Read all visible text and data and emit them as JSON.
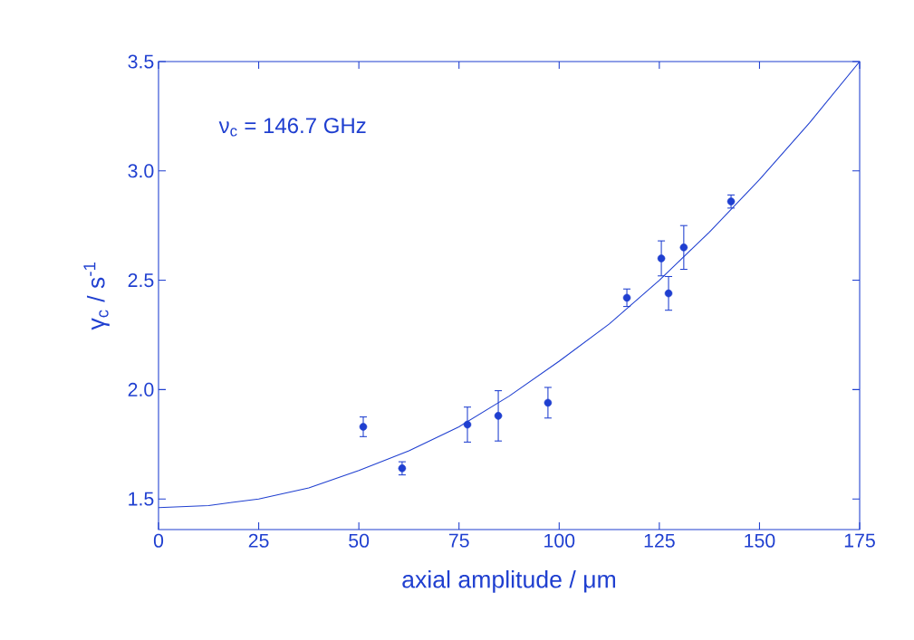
{
  "chart_data": {
    "type": "scatter",
    "xlabel": "axial amplitude / μm",
    "ylabel": "γ$_{c}$ / s$^{-1}$",
    "annotations": [
      "ν$_{c}$ = 146.7 GHz"
    ],
    "xlim": [
      0,
      175
    ],
    "ylim": [
      1.36,
      3.5
    ],
    "xticks": [
      0,
      25,
      50,
      75,
      100,
      125,
      150,
      175
    ],
    "yticks": [
      1.5,
      {
        "value": 2,
        "label": "2.0"
      },
      2.5,
      {
        "value": 3,
        "label": "3.0"
      },
      3.5
    ],
    "grid": false,
    "legend": false,
    "series": [
      {
        "color": "#1f3fd0",
        "marker": "circle",
        "x": [
          51.1,
          60.8,
          77.1,
          84.8,
          97.2,
          116.9,
          125.5,
          127.3,
          131.1,
          142.9
        ],
        "values": [
          1.83,
          1.64,
          1.84,
          1.88,
          1.94,
          2.42,
          2.6,
          2.44,
          2.65,
          2.86
        ],
        "errors": [
          0.045,
          0.03,
          0.08,
          0.115,
          0.07,
          0.04,
          0.08,
          0.077,
          0.1,
          0.03
        ]
      },
      {
        "type": "line",
        "color": "#1f3fd0",
        "marker": "none",
        "line_style": "solid",
        "x": [
          0,
          12.5,
          25,
          37.5,
          50,
          62.5,
          75,
          87.5,
          100,
          112.5,
          125,
          137.5,
          150,
          162.5,
          175
        ],
        "values": [
          1.46,
          1.47,
          1.5,
          1.55,
          1.63,
          1.72,
          1.83,
          1.97,
          2.13,
          2.3,
          2.5,
          2.72,
          2.96,
          3.22,
          3.5
        ]
      }
    ]
  }
}
